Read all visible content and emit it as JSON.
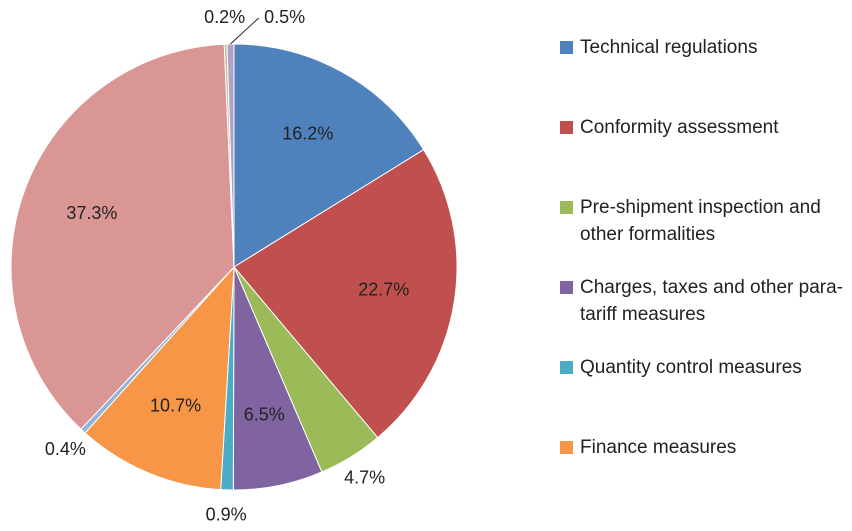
{
  "chart_data": {
    "type": "pie",
    "categories": [
      "Technical regulations",
      "Conformity assessment",
      "Pre-shipment inspection and other formalities",
      "Charges, taxes and other para-tariff measures",
      "Quantity control measures",
      "Finance measures",
      null,
      null,
      null,
      null
    ],
    "values": [
      16.2,
      22.7,
      4.7,
      6.5,
      0.9,
      10.7,
      0.4,
      37.3,
      0.2,
      0.5
    ],
    "value_labels": [
      "16.2%",
      "22.7%",
      "4.7%",
      "6.5%",
      "0.9%",
      "10.7%",
      "0.4%",
      "37.3%",
      "0.2%",
      "0.5%"
    ],
    "colors": [
      "#4f81bd",
      "#c0504d",
      "#9bbb59",
      "#8064a2",
      "#4bacc6",
      "#f79646",
      "#95b3d7",
      "#d99694",
      "#c4bd97",
      "#b2a1c7"
    ],
    "legend": "right"
  }
}
